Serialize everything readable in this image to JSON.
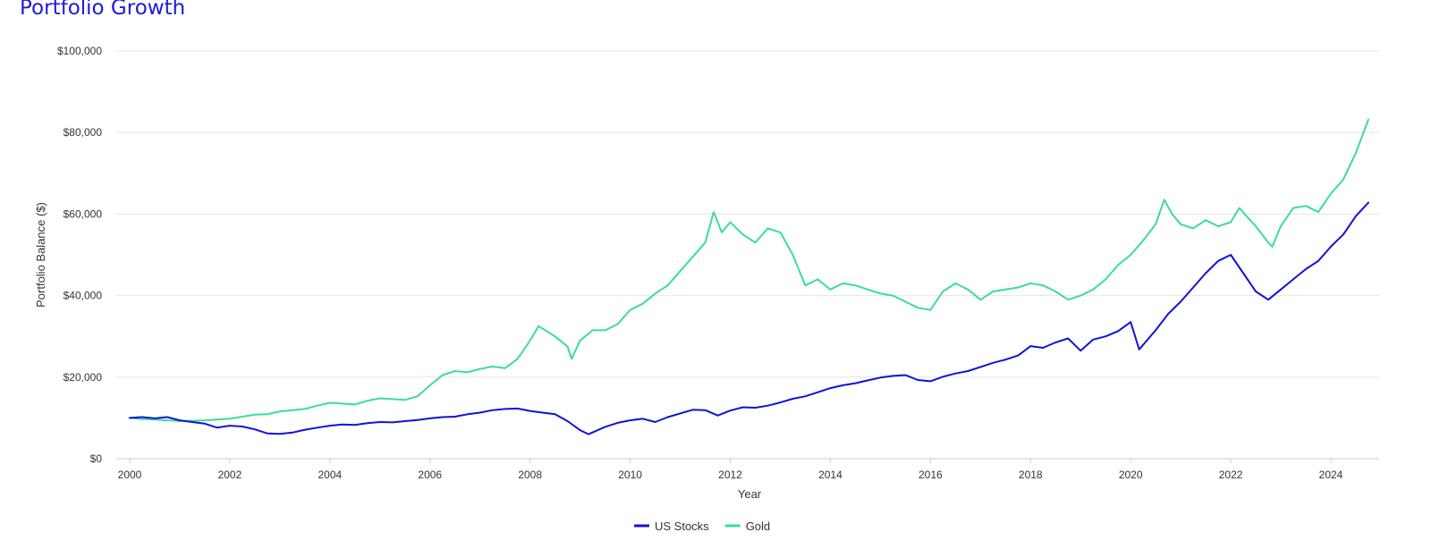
{
  "chart_data": {
    "type": "line",
    "title": "Portfolio Growth",
    "xlabel": "Year",
    "ylabel": "Portfolio Balance ($)",
    "xlim": [
      2000,
      2024.75
    ],
    "ylim": [
      0,
      100000
    ],
    "x_ticks": [
      "2000",
      "2002",
      "2004",
      "2006",
      "2008",
      "2010",
      "2012",
      "2014",
      "2016",
      "2018",
      "2020",
      "2022",
      "2024"
    ],
    "y_ticks": [
      "$0",
      "$20,000",
      "$40,000",
      "$60,000",
      "$80,000",
      "$100,000"
    ],
    "legend_position": "bottom-center",
    "series": [
      {
        "name": "US Stocks",
        "color": "#1212d4",
        "points": [
          [
            2000.0,
            10000
          ],
          [
            2000.25,
            10200
          ],
          [
            2000.5,
            9900
          ],
          [
            2000.75,
            10200
          ],
          [
            2001.0,
            9400
          ],
          [
            2001.25,
            9000
          ],
          [
            2001.5,
            8600
          ],
          [
            2001.75,
            7600
          ],
          [
            2002.0,
            8100
          ],
          [
            2002.25,
            7900
          ],
          [
            2002.5,
            7200
          ],
          [
            2002.75,
            6200
          ],
          [
            2003.0,
            6100
          ],
          [
            2003.25,
            6400
          ],
          [
            2003.5,
            7100
          ],
          [
            2003.75,
            7600
          ],
          [
            2004.0,
            8100
          ],
          [
            2004.25,
            8400
          ],
          [
            2004.5,
            8300
          ],
          [
            2004.75,
            8700
          ],
          [
            2005.0,
            9000
          ],
          [
            2005.25,
            8900
          ],
          [
            2005.5,
            9200
          ],
          [
            2005.75,
            9500
          ],
          [
            2006.0,
            9900
          ],
          [
            2006.25,
            10200
          ],
          [
            2006.5,
            10300
          ],
          [
            2006.75,
            10900
          ],
          [
            2007.0,
            11300
          ],
          [
            2007.25,
            11900
          ],
          [
            2007.5,
            12200
          ],
          [
            2007.75,
            12300
          ],
          [
            2008.0,
            11700
          ],
          [
            2008.25,
            11300
          ],
          [
            2008.5,
            10900
          ],
          [
            2008.75,
            9200
          ],
          [
            2009.0,
            7000
          ],
          [
            2009.17,
            6000
          ],
          [
            2009.5,
            7800
          ],
          [
            2009.75,
            8800
          ],
          [
            2010.0,
            9400
          ],
          [
            2010.25,
            9800
          ],
          [
            2010.5,
            9000
          ],
          [
            2010.75,
            10200
          ],
          [
            2011.0,
            11100
          ],
          [
            2011.25,
            12000
          ],
          [
            2011.5,
            11900
          ],
          [
            2011.75,
            10600
          ],
          [
            2012.0,
            11800
          ],
          [
            2012.25,
            12600
          ],
          [
            2012.5,
            12500
          ],
          [
            2012.75,
            13000
          ],
          [
            2013.0,
            13800
          ],
          [
            2013.25,
            14700
          ],
          [
            2013.5,
            15300
          ],
          [
            2013.75,
            16300
          ],
          [
            2014.0,
            17300
          ],
          [
            2014.25,
            18000
          ],
          [
            2014.5,
            18500
          ],
          [
            2014.75,
            19200
          ],
          [
            2015.0,
            19900
          ],
          [
            2015.25,
            20300
          ],
          [
            2015.5,
            20500
          ],
          [
            2015.75,
            19300
          ],
          [
            2016.0,
            19000
          ],
          [
            2016.25,
            20100
          ],
          [
            2016.5,
            20900
          ],
          [
            2016.75,
            21500
          ],
          [
            2017.0,
            22500
          ],
          [
            2017.25,
            23500
          ],
          [
            2017.5,
            24300
          ],
          [
            2017.75,
            25300
          ],
          [
            2018.0,
            27600
          ],
          [
            2018.25,
            27200
          ],
          [
            2018.5,
            28500
          ],
          [
            2018.75,
            29500
          ],
          [
            2019.0,
            26500
          ],
          [
            2019.25,
            29200
          ],
          [
            2019.5,
            30000
          ],
          [
            2019.75,
            31300
          ],
          [
            2020.0,
            33500
          ],
          [
            2020.17,
            26800
          ],
          [
            2020.5,
            31500
          ],
          [
            2020.75,
            35500
          ],
          [
            2021.0,
            38500
          ],
          [
            2021.25,
            42000
          ],
          [
            2021.5,
            45500
          ],
          [
            2021.75,
            48500
          ],
          [
            2022.0,
            50000
          ],
          [
            2022.25,
            45500
          ],
          [
            2022.5,
            41000
          ],
          [
            2022.75,
            39000
          ],
          [
            2023.0,
            41500
          ],
          [
            2023.25,
            44000
          ],
          [
            2023.5,
            46500
          ],
          [
            2023.75,
            48500
          ],
          [
            2024.0,
            52000
          ],
          [
            2024.25,
            55000
          ],
          [
            2024.5,
            59500
          ],
          [
            2024.75,
            62800
          ]
        ]
      },
      {
        "name": "Gold",
        "color": "#3ddc97",
        "points": [
          [
            2000.0,
            10000
          ],
          [
            2000.25,
            9700
          ],
          [
            2000.5,
            9600
          ],
          [
            2000.75,
            9400
          ],
          [
            2001.0,
            9200
          ],
          [
            2001.25,
            9300
          ],
          [
            2001.5,
            9400
          ],
          [
            2001.75,
            9600
          ],
          [
            2002.0,
            9800
          ],
          [
            2002.25,
            10300
          ],
          [
            2002.5,
            10800
          ],
          [
            2002.75,
            10900
          ],
          [
            2003.0,
            11600
          ],
          [
            2003.25,
            11900
          ],
          [
            2003.5,
            12200
          ],
          [
            2003.75,
            13000
          ],
          [
            2004.0,
            13700
          ],
          [
            2004.25,
            13500
          ],
          [
            2004.5,
            13300
          ],
          [
            2004.75,
            14200
          ],
          [
            2005.0,
            14800
          ],
          [
            2005.25,
            14600
          ],
          [
            2005.5,
            14400
          ],
          [
            2005.75,
            15300
          ],
          [
            2006.0,
            18000
          ],
          [
            2006.25,
            20500
          ],
          [
            2006.5,
            21500
          ],
          [
            2006.75,
            21200
          ],
          [
            2007.0,
            22000
          ],
          [
            2007.25,
            22600
          ],
          [
            2007.5,
            22200
          ],
          [
            2007.75,
            24500
          ],
          [
            2008.0,
            29000
          ],
          [
            2008.17,
            32500
          ],
          [
            2008.5,
            30000
          ],
          [
            2008.75,
            27500
          ],
          [
            2008.83,
            24500
          ],
          [
            2009.0,
            29000
          ],
          [
            2009.25,
            31500
          ],
          [
            2009.5,
            31500
          ],
          [
            2009.75,
            33000
          ],
          [
            2010.0,
            36500
          ],
          [
            2010.25,
            38000
          ],
          [
            2010.5,
            40500
          ],
          [
            2010.75,
            42500
          ],
          [
            2011.0,
            46000
          ],
          [
            2011.25,
            49500
          ],
          [
            2011.5,
            53000
          ],
          [
            2011.67,
            60500
          ],
          [
            2011.83,
            55500
          ],
          [
            2012.0,
            58000
          ],
          [
            2012.25,
            55000
          ],
          [
            2012.5,
            53000
          ],
          [
            2012.75,
            56500
          ],
          [
            2013.0,
            55500
          ],
          [
            2013.25,
            50000
          ],
          [
            2013.5,
            42500
          ],
          [
            2013.75,
            44000
          ],
          [
            2014.0,
            41500
          ],
          [
            2014.25,
            43000
          ],
          [
            2014.5,
            42500
          ],
          [
            2014.75,
            41500
          ],
          [
            2015.0,
            40500
          ],
          [
            2015.25,
            40000
          ],
          [
            2015.5,
            38500
          ],
          [
            2015.75,
            37000
          ],
          [
            2016.0,
            36500
          ],
          [
            2016.25,
            41000
          ],
          [
            2016.5,
            43000
          ],
          [
            2016.75,
            41500
          ],
          [
            2017.0,
            39000
          ],
          [
            2017.25,
            41000
          ],
          [
            2017.5,
            41500
          ],
          [
            2017.75,
            42000
          ],
          [
            2018.0,
            43000
          ],
          [
            2018.25,
            42500
          ],
          [
            2018.5,
            41000
          ],
          [
            2018.75,
            39000
          ],
          [
            2019.0,
            40000
          ],
          [
            2019.25,
            41500
          ],
          [
            2019.5,
            44000
          ],
          [
            2019.75,
            47500
          ],
          [
            2020.0,
            50000
          ],
          [
            2020.25,
            53500
          ],
          [
            2020.5,
            57500
          ],
          [
            2020.67,
            63500
          ],
          [
            2020.83,
            60000
          ],
          [
            2021.0,
            57500
          ],
          [
            2021.25,
            56500
          ],
          [
            2021.5,
            58500
          ],
          [
            2021.75,
            57000
          ],
          [
            2022.0,
            58000
          ],
          [
            2022.17,
            61500
          ],
          [
            2022.5,
            57000
          ],
          [
            2022.75,
            53000
          ],
          [
            2022.83,
            52000
          ],
          [
            2023.0,
            57000
          ],
          [
            2023.25,
            61500
          ],
          [
            2023.5,
            62000
          ],
          [
            2023.75,
            60500
          ],
          [
            2024.0,
            65000
          ],
          [
            2024.25,
            68500
          ],
          [
            2024.5,
            75000
          ],
          [
            2024.75,
            83200
          ]
        ]
      }
    ]
  }
}
